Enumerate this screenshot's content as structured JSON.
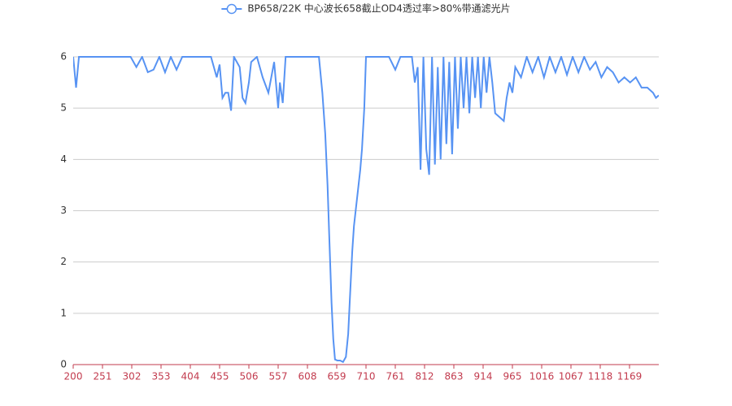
{
  "chart_data": {
    "type": "line",
    "legend_position": "top",
    "x": [
      200,
      205,
      210,
      220,
      230,
      240,
      250,
      260,
      270,
      280,
      290,
      300,
      310,
      320,
      330,
      340,
      350,
      360,
      370,
      380,
      390,
      400,
      410,
      420,
      430,
      440,
      450,
      455,
      460,
      465,
      470,
      475,
      480,
      490,
      495,
      500,
      506,
      510,
      520,
      530,
      540,
      550,
      557,
      560,
      565,
      570,
      580,
      590,
      600,
      610,
      620,
      628,
      634,
      639,
      643,
      646,
      650,
      653,
      656,
      660,
      665,
      670,
      675,
      679,
      682,
      686,
      689,
      693,
      696,
      700,
      703,
      707,
      710,
      720,
      730,
      740,
      750,
      761,
      770,
      780,
      790,
      795,
      800,
      805,
      810,
      815,
      820,
      825,
      830,
      835,
      840,
      845,
      850,
      855,
      860,
      865,
      870,
      875,
      880,
      885,
      890,
      895,
      900,
      905,
      910,
      915,
      920,
      925,
      930,
      935,
      940,
      945,
      950,
      955,
      960,
      965,
      970,
      980,
      990,
      1000,
      1010,
      1020,
      1030,
      1040,
      1050,
      1060,
      1070,
      1080,
      1090,
      1100,
      1110,
      1120,
      1130,
      1140,
      1150,
      1160,
      1170,
      1180,
      1190,
      1200,
      1210,
      1215,
      1220
    ],
    "series": [
      {
        "name": "BP658/22K 中心波长658截止OD4透过率>80%带通滤光片",
        "color": "#5793f3",
        "values": [
          6,
          5.4,
          6,
          6,
          6,
          6,
          6,
          6,
          6,
          6,
          6,
          6,
          5.8,
          6,
          5.7,
          5.75,
          6,
          5.7,
          6,
          5.75,
          6,
          6,
          6,
          6,
          6,
          6,
          5.6,
          5.85,
          5.2,
          5.3,
          5.3,
          4.95,
          6,
          5.8,
          5.2,
          5.1,
          5.5,
          5.9,
          6,
          5.6,
          5.3,
          5.9,
          5.0,
          5.5,
          5.1,
          6,
          6,
          6,
          6,
          6,
          6,
          6,
          5.3,
          4.5,
          3.5,
          2.5,
          1.2,
          0.5,
          0.1,
          0.08,
          0.08,
          0.05,
          0.15,
          0.6,
          1.3,
          2.2,
          2.7,
          3.1,
          3.4,
          3.8,
          4.2,
          5.0,
          6,
          6,
          6,
          6,
          6,
          5.75,
          6,
          6,
          6,
          5.5,
          5.8,
          3.8,
          6,
          4.2,
          3.7,
          6,
          3.9,
          5.8,
          4.0,
          6,
          4.3,
          5.9,
          4.1,
          6,
          4.6,
          6,
          5.0,
          6,
          4.9,
          6,
          5.2,
          6,
          5.0,
          6,
          5.3,
          6,
          5.5,
          4.9,
          4.85,
          4.8,
          4.75,
          5.2,
          5.5,
          5.3,
          5.8,
          5.6,
          6,
          5.7,
          6,
          5.6,
          6,
          5.7,
          6,
          5.65,
          6,
          5.7,
          6,
          5.75,
          5.9,
          5.6,
          5.8,
          5.7,
          5.5,
          5.6,
          5.5,
          5.6,
          5.4,
          5.4,
          5.3,
          5.2,
          5.25
        ]
      }
    ],
    "xlim": [
      200,
      1220
    ],
    "xticks": [
      200,
      251,
      302,
      353,
      404,
      455,
      506,
      557,
      608,
      659,
      710,
      761,
      812,
      863,
      914,
      965,
      1016,
      1067,
      1118,
      1169
    ],
    "ylim": [
      0,
      6
    ],
    "yticks": [
      0,
      1,
      2,
      3,
      4,
      5,
      6
    ],
    "grid": true
  }
}
